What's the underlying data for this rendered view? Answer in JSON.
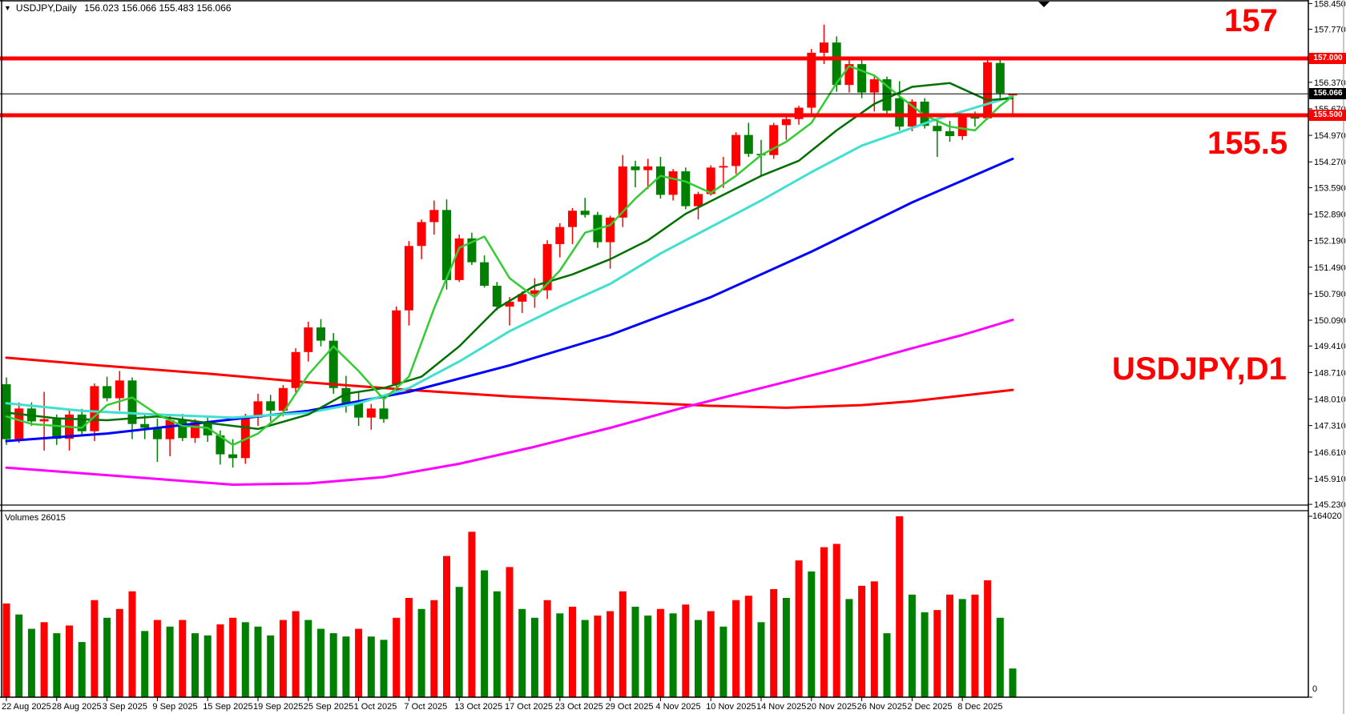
{
  "title": {
    "symbol": "USDJPY,Daily",
    "ohlc_text": " 156.023 156.066 155.483 156.066"
  },
  "annotations": {
    "resistance_label": "157",
    "support_label": "155.5",
    "symbol_label": "USDJPY,D1",
    "color": "#ff0000"
  },
  "volume_panel": {
    "label": "Volumes 26015",
    "max_label": "164020",
    "zero_label": "0"
  },
  "price_boxes": {
    "resistance": "157.000",
    "current": "156.066",
    "support": "155.500"
  },
  "chart_data": {
    "type": "candlestick",
    "symbol": "USDJPY",
    "timeframe": "D1",
    "title": "USDJPY,Daily  156.023 156.066 155.483 156.066",
    "ylim": [
      145.23,
      158.54
    ],
    "grid": false,
    "colors": {
      "up": "#ff0000",
      "down": "#008000",
      "background": "#ffffff"
    },
    "y_ticks": [
      "158.450",
      "157.770",
      "156.370",
      "155.670",
      "154.970",
      "154.270",
      "153.590",
      "152.890",
      "152.190",
      "151.490",
      "150.790",
      "150.090",
      "149.410",
      "148.710",
      "148.010",
      "147.310",
      "146.610",
      "145.910",
      "145.230"
    ],
    "x_labels": [
      "22 Aug 2025",
      "28 Aug 2025",
      "3 Sep 2025",
      "9 Sep 2025",
      "15 Sep 2025",
      "19 Sep 2025",
      "25 Sep 2025",
      "1 Oct 2025",
      "7 Oct 2025",
      "13 Oct 2025",
      "17 Oct 2025",
      "23 Oct 2025",
      "29 Oct 2025",
      "4 Nov 2025",
      "10 Nov 2025",
      "14 Nov 2025",
      "20 Nov 2025",
      "26 Nov 2025",
      "2 Dec 2025",
      "8 Dec 2025"
    ],
    "x_label_every": 4,
    "hlines": [
      {
        "price": 157.0,
        "label": "157.000",
        "color": "#ff0000",
        "width": 5
      },
      {
        "price": 155.5,
        "label": "155.500",
        "color": "#ff0000",
        "width": 5
      }
    ],
    "current_price": 156.066,
    "current_candle_ohlc": {
      "open": "156.023",
      "high": "156.066",
      "low": "155.483",
      "close": "156.066"
    },
    "candles": [
      [
        148.4,
        148.58,
        146.8,
        146.95
      ],
      [
        146.95,
        147.92,
        146.85,
        147.76
      ],
      [
        147.76,
        147.92,
        147.3,
        147.42
      ],
      [
        147.42,
        148.2,
        146.65,
        147.48
      ],
      [
        147.48,
        147.6,
        146.8,
        146.96
      ],
      [
        146.96,
        147.72,
        146.65,
        147.6
      ],
      [
        147.6,
        147.75,
        147.05,
        147.16
      ],
      [
        147.16,
        148.42,
        146.9,
        148.35
      ],
      [
        148.35,
        148.6,
        147.95,
        148.03
      ],
      [
        148.03,
        148.75,
        147.7,
        148.5
      ],
      [
        148.5,
        148.58,
        146.95,
        147.35
      ],
      [
        147.35,
        147.62,
        146.95,
        147.25
      ],
      [
        147.25,
        147.5,
        146.35,
        146.95
      ],
      [
        146.95,
        147.62,
        146.5,
        147.45
      ],
      [
        147.45,
        147.62,
        146.9,
        146.98
      ],
      [
        146.98,
        147.48,
        146.85,
        147.4
      ],
      [
        147.4,
        147.52,
        146.88,
        147.05
      ],
      [
        147.05,
        147.18,
        146.28,
        146.55
      ],
      [
        146.55,
        146.95,
        146.2,
        146.45
      ],
      [
        146.45,
        147.62,
        146.3,
        147.52
      ],
      [
        147.52,
        148.15,
        147.3,
        147.95
      ],
      [
        147.95,
        148.12,
        147.42,
        147.7
      ],
      [
        147.7,
        148.38,
        147.55,
        148.3
      ],
      [
        148.3,
        149.35,
        148.18,
        149.25
      ],
      [
        149.25,
        150.05,
        149.0,
        149.9
      ],
      [
        149.9,
        150.12,
        149.4,
        149.55
      ],
      [
        149.55,
        149.75,
        148.15,
        148.3
      ],
      [
        148.3,
        148.62,
        147.65,
        147.9
      ],
      [
        147.9,
        148.22,
        147.3,
        147.52
      ],
      [
        147.52,
        147.88,
        147.2,
        147.76
      ],
      [
        147.76,
        147.98,
        147.38,
        147.48
      ],
      [
        148.4,
        150.45,
        148.2,
        150.35
      ],
      [
        150.35,
        152.18,
        149.95,
        152.05
      ],
      [
        152.05,
        152.75,
        151.7,
        152.68
      ],
      [
        152.68,
        153.25,
        152.35,
        153.0
      ],
      [
        153.0,
        153.28,
        150.9,
        151.15
      ],
      [
        151.15,
        152.35,
        151.1,
        152.25
      ],
      [
        152.25,
        152.4,
        151.55,
        151.62
      ],
      [
        151.62,
        151.8,
        150.95,
        151.0
      ],
      [
        151.0,
        151.1,
        150.35,
        150.45
      ],
      [
        150.45,
        150.7,
        149.95,
        150.58
      ],
      [
        150.58,
        150.85,
        150.28,
        150.78
      ],
      [
        150.78,
        151.2,
        150.42,
        150.88
      ],
      [
        150.88,
        152.2,
        150.65,
        152.1
      ],
      [
        152.1,
        152.65,
        151.75,
        152.55
      ],
      [
        152.55,
        153.05,
        152.1,
        152.98
      ],
      [
        152.98,
        153.32,
        152.8,
        152.87
      ],
      [
        152.87,
        152.95,
        152.0,
        152.15
      ],
      [
        152.15,
        152.85,
        151.45,
        152.8
      ],
      [
        152.8,
        154.45,
        152.55,
        154.15
      ],
      [
        154.15,
        154.3,
        153.6,
        154.05
      ],
      [
        154.05,
        154.35,
        153.55,
        154.15
      ],
      [
        154.15,
        154.4,
        153.3,
        153.4
      ],
      [
        153.4,
        154.08,
        153.25,
        154.02
      ],
      [
        154.02,
        154.12,
        153.02,
        153.1
      ],
      [
        153.1,
        153.48,
        152.75,
        153.42
      ],
      [
        153.42,
        154.18,
        153.38,
        154.12
      ],
      [
        154.12,
        154.4,
        153.58,
        154.16
      ],
      [
        154.16,
        155.05,
        153.95,
        154.98
      ],
      [
        154.98,
        155.3,
        154.4,
        154.48
      ],
      [
        154.48,
        154.85,
        153.9,
        154.45
      ],
      [
        154.45,
        155.3,
        154.35,
        155.24
      ],
      [
        155.24,
        155.55,
        154.85,
        155.4
      ],
      [
        155.4,
        155.75,
        155.25,
        155.7
      ],
      [
        155.7,
        157.25,
        155.5,
        157.15
      ],
      [
        157.15,
        157.89,
        156.85,
        157.42
      ],
      [
        157.42,
        157.58,
        156.12,
        156.3
      ],
      [
        156.3,
        156.95,
        156.1,
        156.85
      ],
      [
        156.85,
        156.95,
        155.95,
        156.1
      ],
      [
        156.1,
        156.55,
        155.6,
        156.45
      ],
      [
        156.45,
        156.52,
        155.5,
        155.62
      ],
      [
        155.95,
        156.4,
        155.1,
        155.2
      ],
      [
        155.2,
        155.92,
        155.08,
        155.86
      ],
      [
        155.86,
        155.95,
        155.15,
        155.22
      ],
      [
        155.22,
        155.38,
        154.4,
        155.08
      ],
      [
        155.08,
        155.35,
        154.8,
        154.95
      ],
      [
        154.95,
        155.52,
        154.85,
        155.45
      ],
      [
        155.45,
        155.6,
        155.2,
        155.42
      ],
      [
        155.42,
        157.02,
        155.38,
        156.9
      ],
      [
        156.88,
        157.0,
        155.95,
        156.08
      ],
      [
        156.023,
        156.066,
        155.483,
        156.066
      ]
    ],
    "volumes": [
      85000,
      75000,
      62000,
      68000,
      58000,
      65000,
      50000,
      88000,
      72000,
      80000,
      96000,
      60000,
      70000,
      64000,
      70000,
      58000,
      56000,
      66000,
      72000,
      68000,
      64000,
      56000,
      70000,
      78000,
      70000,
      62000,
      58000,
      55000,
      62000,
      55000,
      52000,
      72000,
      90000,
      80000,
      88000,
      128000,
      100000,
      150000,
      115000,
      96000,
      118000,
      80000,
      72000,
      88000,
      76000,
      82000,
      70000,
      74000,
      78000,
      96000,
      82000,
      74000,
      80000,
      76000,
      84000,
      70000,
      78000,
      64000,
      88000,
      92000,
      68000,
      98000,
      90000,
      124000,
      114000,
      136000,
      139000,
      89000,
      101000,
      105000,
      58000,
      164020,
      93000,
      77000,
      79000,
      93000,
      89000,
      93000,
      106000,
      72000,
      26015
    ],
    "volume_max": 164020,
    "ma_lines": [
      {
        "name": "ma-red-long",
        "color": "#ff0000",
        "width": 3,
        "points": [
          [
            0,
            149.1
          ],
          [
            8,
            148.88
          ],
          [
            16,
            148.68
          ],
          [
            24,
            148.45
          ],
          [
            32,
            148.25
          ],
          [
            40,
            148.08
          ],
          [
            48,
            147.95
          ],
          [
            56,
            147.83
          ],
          [
            62,
            147.78
          ],
          [
            68,
            147.85
          ],
          [
            72,
            147.95
          ],
          [
            76,
            148.1
          ],
          [
            80,
            148.25
          ]
        ]
      },
      {
        "name": "ma-magenta",
        "color": "#ff00ff",
        "width": 3,
        "points": [
          [
            0,
            146.2
          ],
          [
            6,
            146.05
          ],
          [
            12,
            145.9
          ],
          [
            18,
            145.75
          ],
          [
            24,
            145.78
          ],
          [
            30,
            145.95
          ],
          [
            36,
            146.3
          ],
          [
            42,
            146.75
          ],
          [
            48,
            147.25
          ],
          [
            54,
            147.8
          ],
          [
            60,
            148.3
          ],
          [
            66,
            148.8
          ],
          [
            72,
            149.35
          ],
          [
            76,
            149.7
          ],
          [
            80,
            150.1
          ]
        ]
      },
      {
        "name": "ma-blue",
        "color": "#0000ff",
        "width": 3,
        "points": [
          [
            0,
            146.9
          ],
          [
            8,
            147.1
          ],
          [
            16,
            147.4
          ],
          [
            24,
            147.7
          ],
          [
            32,
            148.2
          ],
          [
            40,
            148.9
          ],
          [
            48,
            149.7
          ],
          [
            56,
            150.7
          ],
          [
            64,
            151.9
          ],
          [
            72,
            153.2
          ],
          [
            80,
            154.35
          ]
        ]
      },
      {
        "name": "ma-cyan",
        "color": "#40e0d0",
        "width": 3,
        "points": [
          [
            0,
            147.9
          ],
          [
            6,
            147.7
          ],
          [
            12,
            147.6
          ],
          [
            18,
            147.52
          ],
          [
            24,
            147.65
          ],
          [
            28,
            147.9
          ],
          [
            32,
            148.3
          ],
          [
            36,
            149.0
          ],
          [
            40,
            149.8
          ],
          [
            44,
            150.45
          ],
          [
            48,
            151.05
          ],
          [
            52,
            151.85
          ],
          [
            56,
            152.55
          ],
          [
            60,
            153.25
          ],
          [
            64,
            154.0
          ],
          [
            68,
            154.7
          ],
          [
            71,
            155.05
          ],
          [
            74,
            155.4
          ],
          [
            77,
            155.7
          ],
          [
            80,
            156.0
          ]
        ]
      },
      {
        "name": "ma-medium-darkgreen",
        "color": "#007000",
        "width": 2.5,
        "points": [
          [
            0,
            147.65
          ],
          [
            4,
            147.5
          ],
          [
            8,
            147.45
          ],
          [
            12,
            147.55
          ],
          [
            16,
            147.38
          ],
          [
            20,
            147.22
          ],
          [
            24,
            147.6
          ],
          [
            27,
            148.15
          ],
          [
            30,
            148.3
          ],
          [
            33,
            148.6
          ],
          [
            36,
            149.4
          ],
          [
            39,
            150.4
          ],
          [
            42,
            151.0
          ],
          [
            45,
            151.3
          ],
          [
            48,
            151.7
          ],
          [
            51,
            152.2
          ],
          [
            54,
            152.9
          ],
          [
            57,
            153.4
          ],
          [
            60,
            153.9
          ],
          [
            63,
            154.3
          ],
          [
            66,
            155.1
          ],
          [
            69,
            155.8
          ],
          [
            72,
            156.25
          ],
          [
            75,
            156.35
          ],
          [
            78,
            155.9
          ],
          [
            80,
            155.95
          ]
        ]
      },
      {
        "name": "ma-fast-lime",
        "color": "#33cc33",
        "width": 2.5,
        "points": [
          [
            0,
            147.55
          ],
          [
            2,
            147.35
          ],
          [
            4,
            147.3
          ],
          [
            6,
            147.25
          ],
          [
            8,
            147.85
          ],
          [
            10,
            148.05
          ],
          [
            12,
            147.6
          ],
          [
            14,
            147.3
          ],
          [
            16,
            147.25
          ],
          [
            18,
            146.8
          ],
          [
            20,
            147.1
          ],
          [
            22,
            147.65
          ],
          [
            24,
            148.65
          ],
          [
            26,
            149.4
          ],
          [
            28,
            148.75
          ],
          [
            30,
            148.0
          ],
          [
            32,
            148.6
          ],
          [
            34,
            150.4
          ],
          [
            36,
            152.0
          ],
          [
            38,
            152.3
          ],
          [
            40,
            151.2
          ],
          [
            42,
            150.7
          ],
          [
            44,
            151.4
          ],
          [
            46,
            152.4
          ],
          [
            48,
            152.6
          ],
          [
            50,
            153.3
          ],
          [
            52,
            153.9
          ],
          [
            54,
            153.75
          ],
          [
            56,
            153.45
          ],
          [
            58,
            153.9
          ],
          [
            60,
            154.45
          ],
          [
            62,
            154.8
          ],
          [
            64,
            155.3
          ],
          [
            66,
            156.35
          ],
          [
            67,
            156.8
          ],
          [
            69,
            156.55
          ],
          [
            71,
            156.0
          ],
          [
            73,
            155.5
          ],
          [
            75,
            155.2
          ],
          [
            77,
            155.1
          ],
          [
            79,
            155.75
          ],
          [
            80,
            156.0
          ]
        ]
      }
    ]
  }
}
